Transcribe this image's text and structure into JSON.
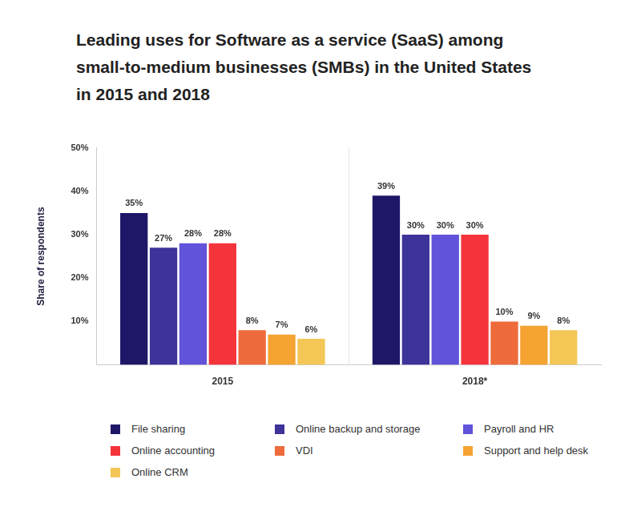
{
  "chart_data": {
    "type": "bar",
    "title": [
      "Leading uses for Software as a service (SaaS) among",
      "small-to-medium businesses (SMBs) in the United States",
      "in 2015 and 2018"
    ],
    "y_label": "Share of respondents",
    "categories": [
      "2015",
      "2018*"
    ],
    "series": [
      {
        "name": "File sharing",
        "color": "#1e1768",
        "values": [
          35,
          39
        ],
        "value_labels": [
          "35%",
          "39%"
        ]
      },
      {
        "name": "Online backup and storage",
        "color": "#3d3399",
        "values": [
          27,
          30
        ],
        "value_labels": [
          "27%",
          "30%"
        ]
      },
      {
        "name": "Payroll and HR",
        "color": "#6153da",
        "values": [
          28,
          30
        ],
        "value_labels": [
          "28%",
          "30%"
        ]
      },
      {
        "name": "Online accounting",
        "color": "#f5333b",
        "values": [
          28,
          30
        ],
        "value_labels": [
          "28%",
          "30%"
        ]
      },
      {
        "name": "VDI",
        "color": "#ee6b3b",
        "values": [
          8,
          10
        ],
        "value_labels": [
          "8%",
          "10%"
        ]
      },
      {
        "name": "Support and help desk",
        "color": "#f5a331",
        "values": [
          7,
          9
        ],
        "value_labels": [
          "7%",
          "9%"
        ]
      },
      {
        "name": "Online CRM",
        "color": "#f3c656",
        "values": [
          6,
          8
        ],
        "value_labels": [
          "6%",
          "8%"
        ]
      }
    ],
    "ylim": [
      0,
      50
    ],
    "yticks": [
      {
        "value": 10,
        "label": "10%"
      },
      {
        "value": 20,
        "label": "20%"
      },
      {
        "value": 30,
        "label": "30%"
      },
      {
        "value": 40,
        "label": "40%"
      },
      {
        "value": 50,
        "label": "50%"
      }
    ],
    "grid": false,
    "legend": "bottom",
    "data_labels": true
  }
}
